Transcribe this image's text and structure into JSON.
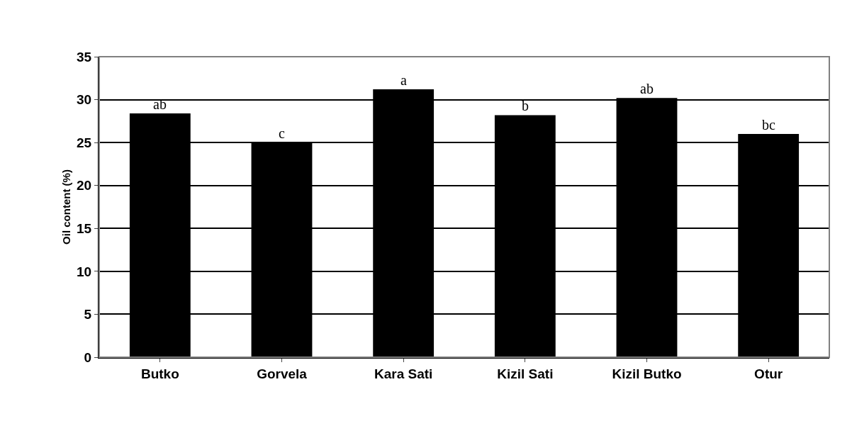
{
  "chart_data": {
    "type": "bar",
    "ylabel": "Oil content (%)",
    "categories": [
      "Butko",
      "Gorvela",
      "Kara Sati",
      "Kizil Sati",
      "Kizil Butko",
      "Otur"
    ],
    "values": [
      28.4,
      25.0,
      31.2,
      28.2,
      30.2,
      26.0
    ],
    "color": "#000000",
    "ylim": [
      0,
      35
    ],
    "yticks": [
      0,
      5,
      10,
      15,
      20,
      25,
      30,
      35
    ],
    "grid": "y",
    "annotations": [
      {
        "text": "ab",
        "x": "Butko",
        "y": 28.4
      },
      {
        "text": "c",
        "x": "Gorvela",
        "y": 25.0
      },
      {
        "text": "a",
        "x": "Kara Sati",
        "y": 31.2
      },
      {
        "text": "b",
        "x": "Kizil Sati",
        "y": 28.2
      },
      {
        "text": "ab",
        "x": "Kizil Butko",
        "y": 30.2
      },
      {
        "text": "bc",
        "x": "Otur",
        "y": 26.0
      }
    ]
  }
}
